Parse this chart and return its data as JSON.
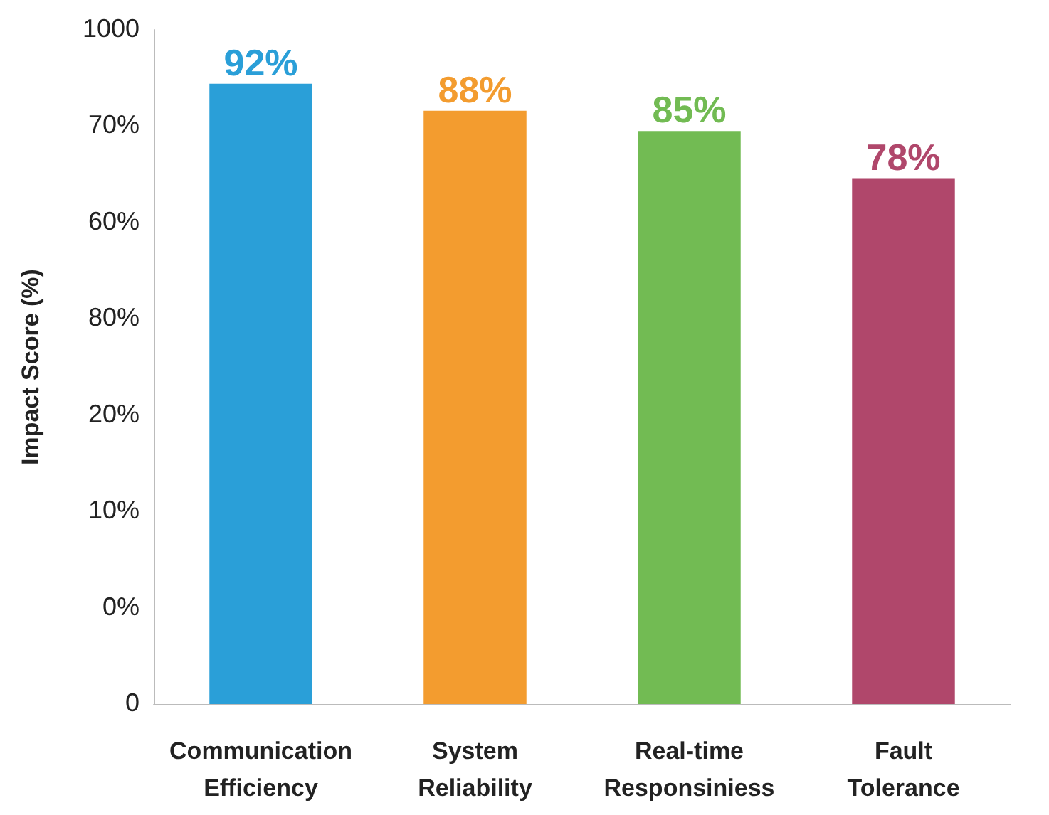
{
  "chart_data": {
    "type": "bar",
    "ylabel": "Impact Score (%)",
    "categories": [
      "Communication Efficiency",
      "System Reliability",
      "Real-time Responsiniess",
      "Fault Tolerance"
    ],
    "values": [
      92,
      88,
      85,
      78
    ],
    "value_labels": [
      "92%",
      "88%",
      "85%",
      "78%"
    ],
    "colors": [
      "#2a9fd8",
      "#f39c2f",
      "#72bb53",
      "#b0476b"
    ],
    "ylim": [
      0,
      100
    ],
    "tick_labels": "x",
    "annotations": [
      "0",
      "0%",
      "10%",
      "20%",
      "80%",
      "60%",
      "70%",
      "1000"
    ],
    "grid": false
  }
}
